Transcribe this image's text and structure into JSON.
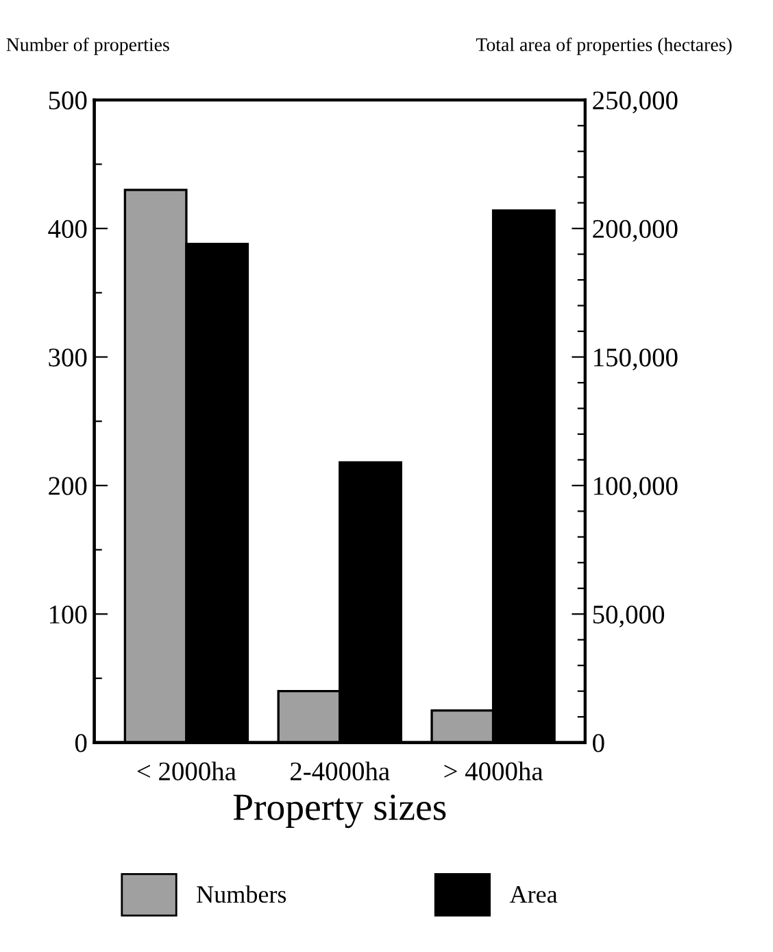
{
  "chart_data": {
    "type": "bar",
    "xlabel": "Property sizes",
    "ylabel": "Number of properties",
    "y2label": "Total area of properties (hectares)",
    "categories": [
      "< 2000ha",
      "2-4000ha",
      "> 4000ha"
    ],
    "series": [
      {
        "name": "Numbers",
        "color": "#a0a0a0",
        "values": [
          430,
          40,
          25
        ]
      },
      {
        "name": "Area",
        "color": "#000000",
        "values": [
          194000,
          109000,
          207000
        ],
        "axis": "y2"
      }
    ],
    "ylim": [
      0,
      500
    ],
    "yticks": [
      0,
      {
        "value": 50,
        "label": null
      },
      100,
      {
        "value": 150,
        "label": null
      },
      200,
      {
        "value": 250,
        "label": null
      },
      300,
      {
        "value": 350,
        "label": null
      },
      400,
      {
        "value": 450,
        "label": null
      },
      500
    ],
    "y2lim": [
      0,
      250000
    ],
    "y2ticks": [
      {
        "value": 0,
        "label": "0"
      },
      {
        "value": 10000,
        "label": null
      },
      {
        "value": 20000,
        "label": null
      },
      {
        "value": 30000,
        "label": null
      },
      {
        "value": 40000,
        "label": null
      },
      {
        "value": 50000,
        "label": "50,000"
      },
      {
        "value": 60000,
        "label": null
      },
      {
        "value": 70000,
        "label": null
      },
      {
        "value": 80000,
        "label": null
      },
      {
        "value": 90000,
        "label": null
      },
      {
        "value": 100000,
        "label": "100,000"
      },
      {
        "value": 110000,
        "label": null
      },
      {
        "value": 120000,
        "label": null
      },
      {
        "value": 130000,
        "label": null
      },
      {
        "value": 140000,
        "label": null
      },
      {
        "value": 150000,
        "label": "150,000"
      },
      {
        "value": 160000,
        "label": null
      },
      {
        "value": 170000,
        "label": null
      },
      {
        "value": 180000,
        "label": null
      },
      {
        "value": 190000,
        "label": null
      },
      {
        "value": 200000,
        "label": "200,000"
      },
      {
        "value": 210000,
        "label": null
      },
      {
        "value": 220000,
        "label": null
      },
      {
        "value": 230000,
        "label": null
      },
      {
        "value": 240000,
        "label": null
      },
      {
        "value": 250000,
        "label": "250,000"
      }
    ],
    "legend": "bottom",
    "grid": false
  }
}
